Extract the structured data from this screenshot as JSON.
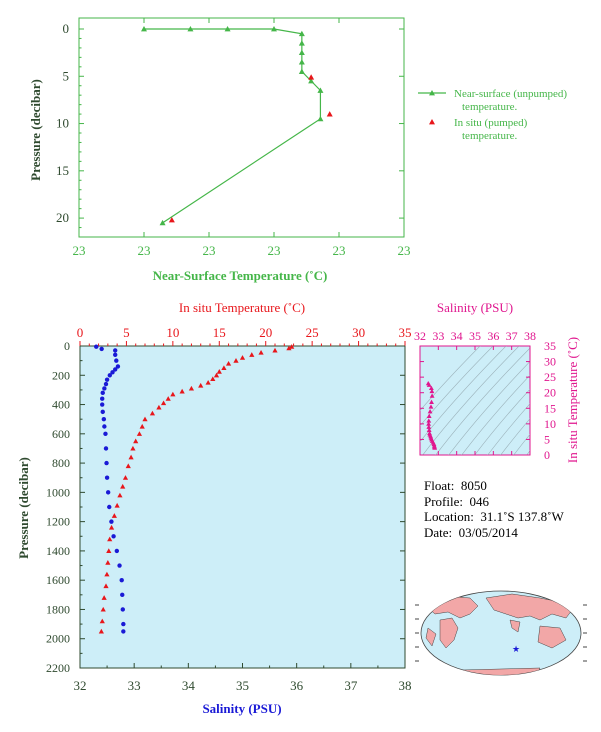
{
  "chart_data": [
    {
      "type": "line",
      "xlabel": "Near-Surface Temperature (˚C)",
      "ylabel": "Pressure (decibar)",
      "xticks": [
        "23",
        "23",
        "23",
        "23",
        "23",
        "23"
      ],
      "yticks": [
        "0",
        "5",
        "10",
        "15",
        "20"
      ],
      "ylim": [
        0,
        22
      ],
      "y_inverted": true,
      "grid": false,
      "legend_placement": "right",
      "series": [
        {
          "name": "Near-surface (unpumped) temperature.",
          "color": "#45b649",
          "marker": "triangle",
          "points": [
            [
              22.92,
              0.0
            ],
            [
              22.97,
              -0.5
            ],
            [
              23.01,
              -0.3
            ],
            [
              23.06,
              -0.2
            ],
            [
              23.09,
              0.5
            ],
            [
              23.09,
              1.5
            ],
            [
              23.09,
              2.5
            ],
            [
              23.09,
              3.5
            ],
            [
              23.09,
              4.5
            ],
            [
              23.1,
              5.5
            ],
            [
              23.11,
              6.5
            ],
            [
              23.11,
              9.5
            ],
            [
              22.94,
              20.5
            ]
          ]
        },
        {
          "name": "In situ (pumped) temperature.",
          "color": "#e8161b",
          "marker": "triangle",
          "points": [
            [
              23.1,
              5.1
            ],
            [
              23.12,
              9.0
            ],
            [
              22.95,
              20.2
            ]
          ]
        }
      ]
    },
    {
      "type": "line",
      "xlabel": "Salinity (PSU)",
      "ylabel": "Pressure (decibar)",
      "x2label": "In situ Temperature (˚C)",
      "xticks": [
        "32",
        "33",
        "34",
        "35",
        "36",
        "37",
        "38"
      ],
      "x2ticks": [
        "0",
        "5",
        "10",
        "15",
        "20",
        "25",
        "30",
        "35"
      ],
      "yticks": [
        "0",
        "200",
        "400",
        "600",
        "800",
        "1000",
        "1200",
        "1400",
        "1600",
        "1800",
        "2000",
        "2200"
      ],
      "xlim": [
        32,
        38
      ],
      "x2lim": [
        0,
        35
      ],
      "ylim": [
        0,
        2200
      ],
      "y_inverted": true,
      "background": "#cdeef8",
      "series": [
        {
          "name": "Salinity",
          "color": "#1a1ad6",
          "marker": "circle",
          "axis": "bottom",
          "points": [
            [
              32.3,
              5
            ],
            [
              32.4,
              20
            ],
            [
              32.65,
              30
            ],
            [
              32.65,
              60
            ],
            [
              32.67,
              100
            ],
            [
              32.7,
              140
            ],
            [
              32.65,
              160
            ],
            [
              32.6,
              180
            ],
            [
              32.55,
              200
            ],
            [
              32.5,
              230
            ],
            [
              32.48,
              260
            ],
            [
              32.45,
              290
            ],
            [
              32.42,
              320
            ],
            [
              32.41,
              360
            ],
            [
              32.41,
              400
            ],
            [
              32.42,
              450
            ],
            [
              32.44,
              500
            ],
            [
              32.45,
              550
            ],
            [
              32.47,
              600
            ],
            [
              32.48,
              700
            ],
            [
              32.49,
              800
            ],
            [
              32.5,
              900
            ],
            [
              32.52,
              1000
            ],
            [
              32.54,
              1100
            ],
            [
              32.58,
              1200
            ],
            [
              32.62,
              1300
            ],
            [
              32.68,
              1400
            ],
            [
              32.73,
              1500
            ],
            [
              32.77,
              1600
            ],
            [
              32.78,
              1700
            ],
            [
              32.79,
              1800
            ],
            [
              32.8,
              1900
            ],
            [
              32.8,
              1950
            ]
          ]
        },
        {
          "name": "In situ Temperature",
          "color": "#e8161b",
          "marker": "triangle",
          "axis": "top",
          "points": [
            [
              22.8,
              5
            ],
            [
              22.5,
              15
            ],
            [
              21.0,
              30
            ],
            [
              19.5,
              45
            ],
            [
              18.5,
              60
            ],
            [
              17.5,
              80
            ],
            [
              16.8,
              100
            ],
            [
              16.0,
              120
            ],
            [
              15.5,
              150
            ],
            [
              15.0,
              175
            ],
            [
              14.7,
              200
            ],
            [
              14.3,
              225
            ],
            [
              13.8,
              250
            ],
            [
              13.0,
              270
            ],
            [
              12.0,
              290
            ],
            [
              11.0,
              310
            ],
            [
              10.0,
              330
            ],
            [
              9.5,
              360
            ],
            [
              9.0,
              390
            ],
            [
              8.5,
              420
            ],
            [
              7.8,
              460
            ],
            [
              7.0,
              500
            ],
            [
              6.7,
              550
            ],
            [
              6.4,
              600
            ],
            [
              6.0,
              650
            ],
            [
              5.7,
              700
            ],
            [
              5.5,
              760
            ],
            [
              5.2,
              820
            ],
            [
              4.9,
              900
            ],
            [
              4.6,
              960
            ],
            [
              4.3,
              1020
            ],
            [
              4.0,
              1090
            ],
            [
              3.7,
              1160
            ],
            [
              3.4,
              1240
            ],
            [
              3.2,
              1320
            ],
            [
              3.1,
              1400
            ],
            [
              3.0,
              1480
            ],
            [
              2.9,
              1560
            ],
            [
              2.8,
              1640
            ],
            [
              2.6,
              1720
            ],
            [
              2.5,
              1800
            ],
            [
              2.4,
              1880
            ],
            [
              2.3,
              1950
            ]
          ]
        }
      ]
    },
    {
      "type": "scatter",
      "title": "Salinity (PSU)",
      "ylabel": "In situ Temperature (˚C)",
      "xticks": [
        "32",
        "33",
        "34",
        "35",
        "36",
        "37",
        "38"
      ],
      "yticks": [
        "0",
        "5",
        "10",
        "15",
        "20",
        "25",
        "30",
        "35"
      ],
      "xlim": [
        32,
        38
      ],
      "ylim": [
        0,
        35
      ],
      "color": "#e0168e",
      "points": [
        [
          32.45,
          23
        ],
        [
          32.5,
          22.5
        ],
        [
          32.62,
          21.5
        ],
        [
          32.65,
          20.5
        ],
        [
          32.66,
          19
        ],
        [
          32.63,
          17
        ],
        [
          32.6,
          15.5
        ],
        [
          32.55,
          14
        ],
        [
          32.5,
          12.5
        ],
        [
          32.48,
          11
        ],
        [
          32.47,
          10
        ],
        [
          32.48,
          9
        ],
        [
          32.5,
          8
        ],
        [
          32.52,
          7
        ],
        [
          32.54,
          6.5
        ],
        [
          32.58,
          6
        ],
        [
          32.6,
          5.5
        ],
        [
          32.63,
          5
        ],
        [
          32.67,
          4.5
        ],
        [
          32.72,
          4
        ],
        [
          32.76,
          3.5
        ],
        [
          32.78,
          3
        ],
        [
          32.79,
          2.6
        ],
        [
          32.8,
          2.3
        ]
      ]
    }
  ],
  "info": {
    "float_label": "Float:",
    "float_value": "8050",
    "profile_label": "Profile:",
    "profile_value": "046",
    "location_label": "Location:",
    "location_value": "31.1˚S  137.8˚W",
    "date_label": "Date:",
    "date_value": "03/05/2014"
  },
  "map": {
    "marker_color": "#1a1ad6",
    "land_color": "#f2a7a7",
    "ocean_color": "#cdeef8"
  },
  "colors": {
    "green": "#45b649",
    "red": "#e8161b",
    "blue": "#1a1ad6",
    "magenta": "#e0168e",
    "axis_dark": "#2f4a2f",
    "plot_bg": "#cdeef8"
  }
}
